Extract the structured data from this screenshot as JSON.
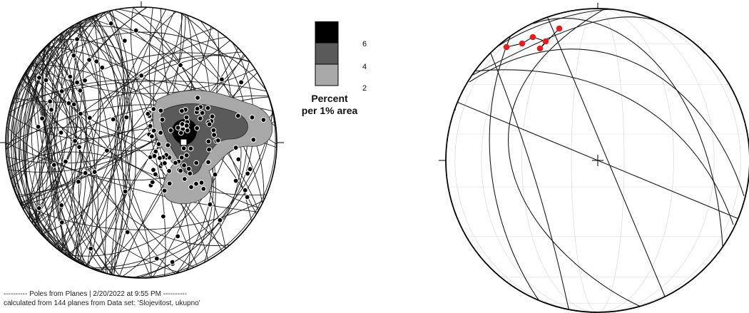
{
  "legend": {
    "title_line1": "Percent",
    "title_line2": "per 1% area",
    "ticks": [
      "6",
      "4",
      "2"
    ],
    "colors": [
      "#000000",
      "#5a5a5a",
      "#a8a8a8"
    ]
  },
  "caption": {
    "line1": "---------- Poles from Planes  |  2/20/2022 at  9:55 PM ----------",
    "line2": "calculated from 144 planes from Data set: 'Slojevitost, ukupno'"
  },
  "colors": {
    "great_circle": "#1a1a1a",
    "pole_fill": "#000000",
    "pole_stroke": "#ffffff",
    "highlight_pole": "#e02020",
    "grid": "#dddddd"
  }
}
